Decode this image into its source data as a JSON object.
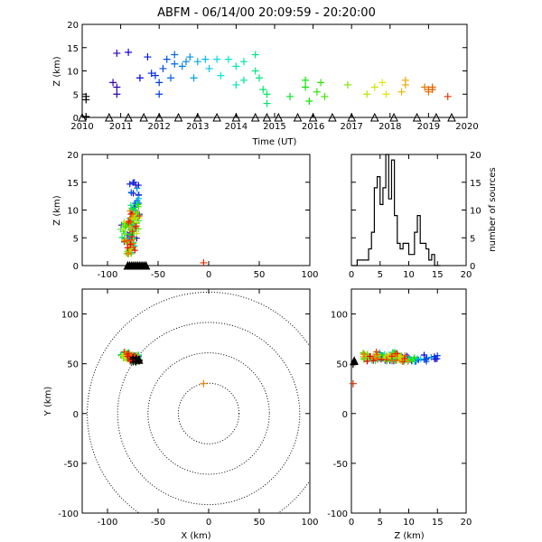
{
  "chart_data": [
    {
      "type": "scatter",
      "panel": "time-height",
      "title": "ABFM - 06/14/00 20:09:59 - 20:20:00",
      "xlabel": "Time (UT)",
      "ylabel": "Z (km)",
      "xlim": [
        2010,
        2020
      ],
      "ylim": [
        0,
        20
      ],
      "xticks": [
        "2010",
        "2011",
        "2012",
        "2013",
        "2014",
        "2015",
        "2016",
        "2017",
        "2018",
        "2019",
        "2020"
      ],
      "yticks": [
        "0",
        "5",
        "10",
        "15",
        "20"
      ],
      "points": [
        {
          "x": 2010.1,
          "y": 4.5
        },
        {
          "x": 2010.1,
          "y": 3.8
        },
        {
          "x": 2010.1,
          "y": 0.2
        },
        {
          "x": 2010.8,
          "y": 7.5
        },
        {
          "x": 2010.9,
          "y": 6.5
        },
        {
          "x": 2010.9,
          "y": 5.0
        },
        {
          "x": 2010.9,
          "y": 13.8
        },
        {
          "x": 2011.2,
          "y": 14.0
        },
        {
          "x": 2011.5,
          "y": 8.5
        },
        {
          "x": 2011.7,
          "y": 13.0
        },
        {
          "x": 2011.8,
          "y": 9.5
        },
        {
          "x": 2011.9,
          "y": 9.0
        },
        {
          "x": 2012.0,
          "y": 5.0
        },
        {
          "x": 2012.0,
          "y": 7.5
        },
        {
          "x": 2012.1,
          "y": 10.5
        },
        {
          "x": 2012.2,
          "y": 12.5
        },
        {
          "x": 2012.3,
          "y": 8.5
        },
        {
          "x": 2012.4,
          "y": 11.5
        },
        {
          "x": 2012.4,
          "y": 13.5
        },
        {
          "x": 2012.6,
          "y": 11.0
        },
        {
          "x": 2012.7,
          "y": 12.0
        },
        {
          "x": 2012.8,
          "y": 13.0
        },
        {
          "x": 2012.9,
          "y": 8.5
        },
        {
          "x": 2013.0,
          "y": 12.0
        },
        {
          "x": 2013.2,
          "y": 12.5
        },
        {
          "x": 2013.3,
          "y": 10.5
        },
        {
          "x": 2013.5,
          "y": 12.5
        },
        {
          "x": 2013.6,
          "y": 9.0
        },
        {
          "x": 2013.8,
          "y": 12.5
        },
        {
          "x": 2014.0,
          "y": 11.0
        },
        {
          "x": 2014.0,
          "y": 7.0
        },
        {
          "x": 2014.2,
          "y": 12.0
        },
        {
          "x": 2014.2,
          "y": 8.0
        },
        {
          "x": 2014.5,
          "y": 13.5
        },
        {
          "x": 2014.5,
          "y": 10.0
        },
        {
          "x": 2014.6,
          "y": 8.5
        },
        {
          "x": 2014.7,
          "y": 6.0
        },
        {
          "x": 2014.8,
          "y": 5.0
        },
        {
          "x": 2014.8,
          "y": 3.0
        },
        {
          "x": 2015.4,
          "y": 4.5
        },
        {
          "x": 2015.8,
          "y": 6.5
        },
        {
          "x": 2015.8,
          "y": 8.0
        },
        {
          "x": 2015.9,
          "y": 3.5
        },
        {
          "x": 2016.1,
          "y": 5.5
        },
        {
          "x": 2016.2,
          "y": 7.5
        },
        {
          "x": 2016.3,
          "y": 4.5
        },
        {
          "x": 2016.9,
          "y": 7.0
        },
        {
          "x": 2017.4,
          "y": 5.0
        },
        {
          "x": 2017.6,
          "y": 6.5
        },
        {
          "x": 2017.8,
          "y": 7.5
        },
        {
          "x": 2017.9,
          "y": 5.0
        },
        {
          "x": 2018.3,
          "y": 5.5
        },
        {
          "x": 2018.4,
          "y": 7.0
        },
        {
          "x": 2018.4,
          "y": 8.0
        },
        {
          "x": 2018.9,
          "y": 6.5
        },
        {
          "x": 2019.0,
          "y": 5.5
        },
        {
          "x": 2019.0,
          "y": 6.0
        },
        {
          "x": 2019.1,
          "y": 6.0
        },
        {
          "x": 2019.1,
          "y": 6.5
        },
        {
          "x": 2019.5,
          "y": 4.5
        }
      ],
      "stations_x": [
        2010.0,
        2010.7,
        2011.2,
        2011.6,
        2012.0,
        2012.5,
        2013.0,
        2013.5,
        2014.0,
        2014.5,
        2014.8,
        2015.1,
        2015.6,
        2016.0,
        2016.5,
        2017.0,
        2017.6,
        2018.1,
        2018.7,
        2019.2,
        2019.6
      ]
    },
    {
      "type": "scatter",
      "panel": "x-z",
      "xlim": [
        -125,
        100
      ],
      "ylim": [
        0,
        20
      ],
      "xticks": [
        "-100",
        "-50",
        "0",
        "50",
        "100"
      ],
      "yticks": [
        "0",
        "5",
        "10",
        "15",
        "20"
      ],
      "ylabel": "Z (km)"
    },
    {
      "type": "bar",
      "panel": "histogram",
      "xlim": [
        0,
        20
      ],
      "ylim": [
        0,
        20
      ],
      "xticks": [
        "0",
        "5",
        "10",
        "15",
        "20"
      ],
      "yticks": [
        "0",
        "5",
        "10",
        "15",
        "20"
      ],
      "ylabel": "number of sources",
      "bin_width": 0.5,
      "bins_start": 0,
      "values": [
        0,
        0,
        1,
        1,
        1,
        1,
        3,
        6,
        14,
        16,
        11,
        14,
        20,
        12,
        19,
        9,
        4,
        3,
        4,
        4,
        2,
        2,
        6,
        9,
        4,
        4,
        3,
        1,
        2,
        0,
        0
      ]
    },
    {
      "type": "scatter",
      "panel": "plan-view",
      "xlabel": "X (km)",
      "ylabel": "Y (km)",
      "xlim": [
        -125,
        100
      ],
      "ylim": [
        -100,
        125
      ],
      "xticks": [
        "-100",
        "-50",
        "0",
        "50",
        "100"
      ],
      "yticks": [
        "-100",
        "-50",
        "0",
        "50",
        "100"
      ],
      "range_rings_km": [
        30,
        60,
        90,
        120
      ],
      "center_source": {
        "x": -5,
        "y": 30
      },
      "cluster_center": {
        "x": -72,
        "y": 55
      }
    },
    {
      "type": "scatter",
      "panel": "z-y",
      "xlabel": "Z (km)",
      "xlim": [
        0,
        20
      ],
      "ylim": [
        -100,
        125
      ],
      "xticks": [
        "0",
        "5",
        "10",
        "15",
        "20"
      ],
      "yticks": [
        "-100",
        "-50",
        "0",
        "50",
        "100"
      ]
    }
  ]
}
